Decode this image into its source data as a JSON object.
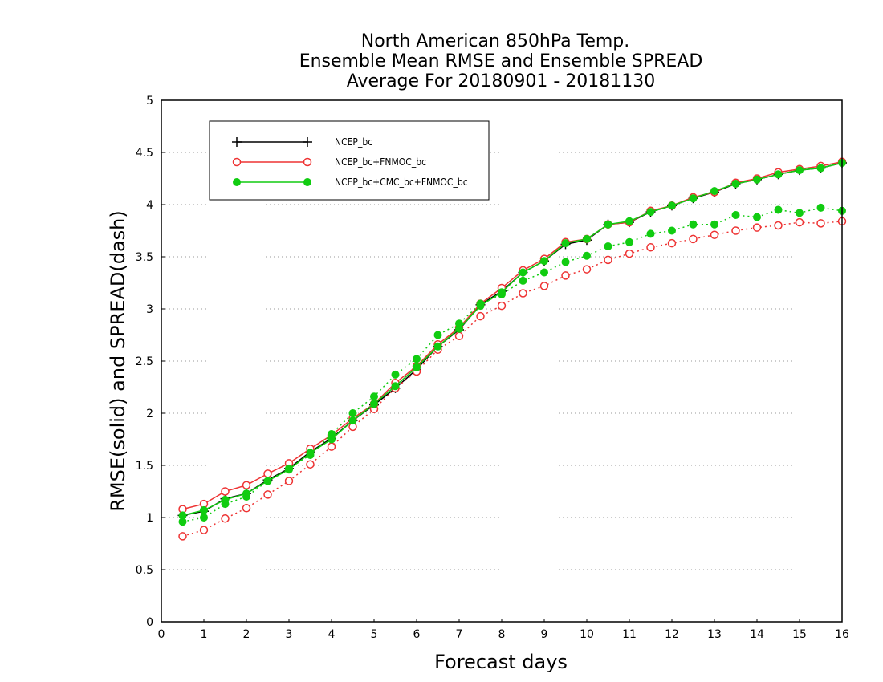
{
  "chart_data": {
    "type": "line",
    "title": [
      "North American 850hPa Temp.",
      "Ensemble Mean RMSE and Ensemble SPREAD",
      "Average For 20180901 - 20181130"
    ],
    "xlabel": "Forecast days",
    "ylabel": "RMSE(solid) and SPREAD(dash)",
    "xlim": [
      0,
      16
    ],
    "ylim": [
      0,
      5
    ],
    "xticks": [
      "0",
      "1",
      "2",
      "3",
      "4",
      "5",
      "6",
      "7",
      "8",
      "9",
      "10",
      "11",
      "12",
      "13",
      "14",
      "15",
      "16"
    ],
    "yticks": [
      "0",
      "0.5",
      "1",
      "1.5",
      "2",
      "2.5",
      "3",
      "3.5",
      "4",
      "4.5",
      "5"
    ],
    "grid": "horizontal dotted",
    "legend_position": "top-left",
    "x": [
      0.5,
      1,
      1.5,
      2,
      2.5,
      3,
      3.5,
      4,
      4.5,
      5,
      5.5,
      6,
      6.5,
      7,
      7.5,
      8,
      8.5,
      9,
      9.5,
      10,
      10.5,
      11,
      11.5,
      12,
      12.5,
      13,
      13.5,
      14,
      14.5,
      15,
      15.5,
      16
    ],
    "series": [
      {
        "name": "NCEP_bc",
        "color": "#000000",
        "marker": "plus",
        "rmse": [
          1.02,
          1.06,
          1.18,
          1.23,
          1.36,
          1.47,
          1.63,
          1.76,
          1.93,
          2.08,
          2.24,
          2.42,
          2.64,
          2.8,
          3.04,
          3.17,
          3.35,
          3.46,
          3.62,
          3.66,
          3.81,
          3.83,
          3.93,
          3.99,
          4.06,
          4.12,
          4.2,
          4.24,
          4.29,
          4.33,
          4.35,
          4.4
        ],
        "spread": null
      },
      {
        "name": "NCEP_bc+FNMOC_bc",
        "color": "#ee3333",
        "marker": "open-circle",
        "rmse": [
          1.08,
          1.13,
          1.25,
          1.31,
          1.42,
          1.52,
          1.66,
          1.79,
          1.95,
          2.09,
          2.29,
          2.45,
          2.66,
          2.82,
          3.05,
          3.2,
          3.37,
          3.48,
          3.64,
          3.67,
          3.81,
          3.83,
          3.94,
          3.99,
          4.07,
          4.12,
          4.21,
          4.25,
          4.31,
          4.34,
          4.37,
          4.41
        ],
        "spread": [
          0.82,
          0.88,
          0.99,
          1.09,
          1.22,
          1.35,
          1.51,
          1.68,
          1.87,
          2.04,
          2.24,
          2.4,
          2.61,
          2.74,
          2.93,
          3.03,
          3.15,
          3.22,
          3.32,
          3.38,
          3.47,
          3.53,
          3.59,
          3.63,
          3.67,
          3.71,
          3.75,
          3.78,
          3.8,
          3.83,
          3.82,
          3.84
        ]
      },
      {
        "name": "NCEP_bc+CMC_bc+FNMOC_bc",
        "color": "#11cc11",
        "marker": "filled-circle",
        "rmse": [
          1.02,
          1.07,
          1.17,
          1.23,
          1.35,
          1.46,
          1.62,
          1.75,
          1.93,
          2.09,
          2.26,
          2.44,
          2.64,
          2.81,
          3.03,
          3.16,
          3.35,
          3.46,
          3.63,
          3.67,
          3.81,
          3.84,
          3.93,
          3.99,
          4.06,
          4.13,
          4.2,
          4.24,
          4.29,
          4.33,
          4.35,
          4.4
        ],
        "spread": [
          0.96,
          1.0,
          1.13,
          1.2,
          1.35,
          1.47,
          1.6,
          1.8,
          2.0,
          2.16,
          2.37,
          2.52,
          2.75,
          2.86,
          3.05,
          3.14,
          3.27,
          3.35,
          3.45,
          3.51,
          3.6,
          3.64,
          3.72,
          3.75,
          3.81,
          3.81,
          3.9,
          3.88,
          3.95,
          3.92,
          3.97,
          3.94
        ]
      }
    ]
  }
}
